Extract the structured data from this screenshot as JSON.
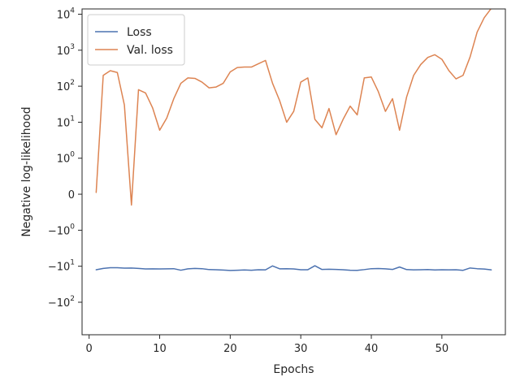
{
  "chart_data": {
    "type": "line",
    "xlabel": "Epochs",
    "ylabel": "Negative log-likelihood",
    "yscale": "symlog",
    "xlim": [
      -1,
      59
    ],
    "ylim": [
      -800,
      14000
    ],
    "xticks": [
      0,
      10,
      20,
      30,
      40,
      50
    ],
    "yticks": [
      {
        "value": 10000,
        "base": "10",
        "exp": "4",
        "sign": ""
      },
      {
        "value": 1000,
        "base": "10",
        "exp": "3",
        "sign": ""
      },
      {
        "value": 100,
        "base": "10",
        "exp": "2",
        "sign": ""
      },
      {
        "value": 10,
        "base": "10",
        "exp": "1",
        "sign": ""
      },
      {
        "value": 1,
        "base": "10",
        "exp": "0",
        "sign": ""
      },
      {
        "value": 0,
        "base": "0",
        "exp": "",
        "sign": ""
      },
      {
        "value": -1,
        "base": "10",
        "exp": "0",
        "sign": "−"
      },
      {
        "value": -10,
        "base": "10",
        "exp": "1",
        "sign": "−"
      },
      {
        "value": -100,
        "base": "10",
        "exp": "2",
        "sign": "−"
      }
    ],
    "legend_position": "top-left",
    "series": [
      {
        "name": "Loss",
        "color": "#4c72b0",
        "x": [
          1,
          2,
          3,
          4,
          5,
          6,
          7,
          8,
          9,
          10,
          11,
          12,
          13,
          14,
          15,
          16,
          17,
          18,
          19,
          20,
          21,
          22,
          23,
          24,
          25,
          26,
          27,
          28,
          29,
          30,
          31,
          32,
          33,
          34,
          35,
          36,
          37,
          38,
          39,
          40,
          41,
          42,
          43,
          44,
          45,
          46,
          47,
          48,
          49,
          50,
          51,
          52,
          53,
          54,
          55,
          56,
          57
        ],
        "y": [
          -12.5,
          -11.5,
          -11,
          -11,
          -11.3,
          -11.2,
          -11.5,
          -11.9,
          -11.8,
          -11.9,
          -11.8,
          -11.7,
          -12.9,
          -11.8,
          -11.5,
          -11.7,
          -12.4,
          -12.5,
          -12.8,
          -13.1,
          -12.9,
          -12.7,
          -12.9,
          -12.5,
          -12.6,
          -9.8,
          -11.8,
          -11.7,
          -11.9,
          -12.5,
          -12.5,
          -9.7,
          -12.3,
          -12.1,
          -12.3,
          -12.5,
          -12.9,
          -13,
          -12.4,
          -11.7,
          -11.6,
          -11.8,
          -12.3,
          -10.5,
          -12.4,
          -12.6,
          -12.5,
          -12.4,
          -12.7,
          -12.5,
          -12.6,
          -12.5,
          -13,
          -11.2,
          -11.7,
          -12,
          -12.6
        ]
      },
      {
        "name": "Val. loss",
        "color": "#dd8452",
        "x": [
          1,
          2,
          3,
          4,
          5,
          6,
          7,
          8,
          9,
          10,
          11,
          12,
          13,
          14,
          15,
          16,
          17,
          18,
          19,
          20,
          21,
          22,
          23,
          24,
          25,
          26,
          27,
          28,
          29,
          30,
          31,
          32,
          33,
          34,
          35,
          36,
          37,
          38,
          39,
          40,
          41,
          42,
          43,
          44,
          45,
          46,
          47,
          48,
          49,
          50,
          51,
          52,
          53,
          54,
          55,
          56,
          57
        ],
        "y": [
          0.05,
          200,
          270,
          240,
          30,
          -0.3,
          80,
          65,
          25,
          6,
          13,
          45,
          120,
          170,
          165,
          130,
          90,
          95,
          120,
          250,
          330,
          340,
          340,
          420,
          520,
          120,
          40,
          10,
          20,
          130,
          170,
          12,
          7,
          24,
          4.5,
          12,
          28,
          16,
          170,
          180,
          70,
          20,
          45,
          6,
          50,
          200,
          400,
          630,
          750,
          560,
          270,
          160,
          200,
          650,
          3200,
          8000,
          14500
        ]
      }
    ]
  }
}
